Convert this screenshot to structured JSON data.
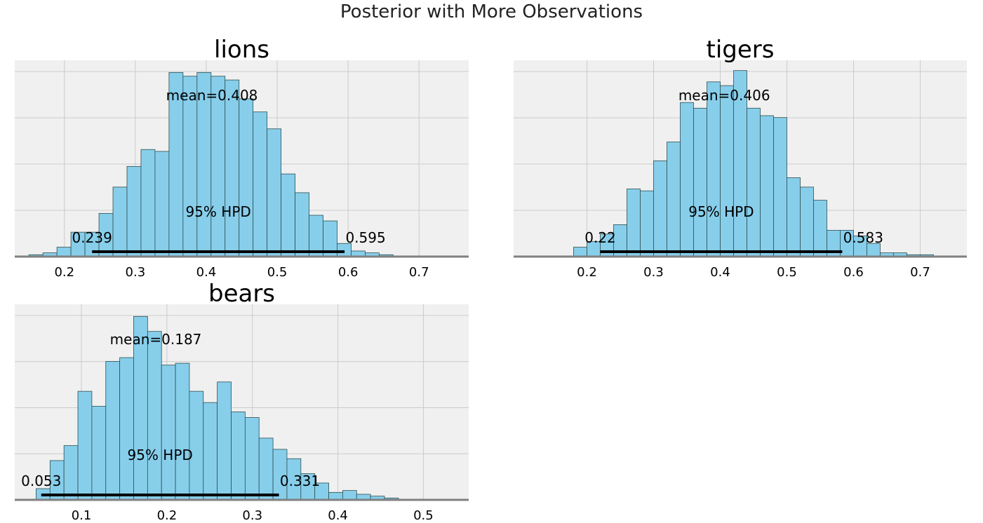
{
  "figure": {
    "title": "Posterior with More Observations"
  },
  "colors": {
    "bar_fill": "#87ceeb",
    "bar_edge": "#2f4f4f",
    "panel_bg": "#f0f0f0",
    "grid": "#cbcbcb",
    "hpd_line": "#000000",
    "axis_line": "#808080",
    "text": "#000000"
  },
  "chart_data": [
    {
      "type": "bar",
      "title": "lions",
      "xlim": [
        0.13,
        0.77
      ],
      "ylim": [
        0,
        1
      ],
      "xticks": [
        0.2,
        0.3,
        0.4,
        0.5,
        0.6,
        0.7
      ],
      "xtick_labels": [
        "0.2",
        "0.3",
        "0.4",
        "0.5",
        "0.6",
        "0.7"
      ],
      "bin_start": 0.15,
      "bin_width": 0.01975,
      "values": [
        0.01,
        0.02,
        0.05,
        0.13,
        0.13,
        0.23,
        0.37,
        0.48,
        0.57,
        0.56,
        0.98,
        0.96,
        0.98,
        0.96,
        0.94,
        0.84,
        0.77,
        0.68,
        0.44,
        0.34,
        0.22,
        0.19,
        0.07,
        0.03,
        0.02,
        0.01
      ],
      "mean_value": 0.408,
      "mean_label": "mean=0.408",
      "hpd": [
        0.239,
        0.595
      ],
      "hpd_low_label": "0.239",
      "hpd_high_label": "0.595",
      "hpd_label": "95% HPD",
      "grid": true
    },
    {
      "type": "bar",
      "title": "tigers",
      "xlim": [
        0.09,
        0.77
      ],
      "ylim": [
        0,
        1
      ],
      "xticks": [
        0.2,
        0.3,
        0.4,
        0.5,
        0.6,
        0.7
      ],
      "xtick_labels": [
        "0.2",
        "0.3",
        "0.4",
        "0.5",
        "0.6",
        "0.7"
      ],
      "bin_start": 0.18,
      "bin_width": 0.02,
      "values": [
        0.05,
        0.08,
        0.12,
        0.17,
        0.36,
        0.35,
        0.51,
        0.61,
        0.82,
        0.79,
        0.93,
        0.91,
        0.99,
        0.79,
        0.75,
        0.74,
        0.42,
        0.37,
        0.3,
        0.14,
        0.14,
        0.11,
        0.07,
        0.02,
        0.02,
        0.01,
        0.01
      ],
      "mean_value": 0.406,
      "mean_label": "mean=0.406",
      "hpd": [
        0.22,
        0.583
      ],
      "hpd_low_label": "0.22",
      "hpd_high_label": "0.583",
      "hpd_label": "95% HPD",
      "grid": true
    },
    {
      "type": "bar",
      "title": "bears",
      "xlim": [
        0.022,
        0.553
      ],
      "ylim": [
        0,
        1
      ],
      "xticks": [
        0.1,
        0.2,
        0.3,
        0.4,
        0.5
      ],
      "xtick_labels": [
        "0.1",
        "0.2",
        "0.3",
        "0.4",
        "0.5"
      ],
      "bin_start": 0.047,
      "bin_width": 0.0163,
      "values": [
        0.06,
        0.21,
        0.29,
        0.58,
        0.5,
        0.74,
        0.76,
        0.98,
        0.9,
        0.72,
        0.73,
        0.58,
        0.52,
        0.63,
        0.47,
        0.44,
        0.33,
        0.27,
        0.22,
        0.14,
        0.09,
        0.04,
        0.05,
        0.03,
        0.02,
        0.01
      ],
      "mean_value": 0.187,
      "mean_label": "mean=0.187",
      "hpd": [
        0.053,
        0.331
      ],
      "hpd_low_label": "0.053",
      "hpd_high_label": "0.331",
      "hpd_label": "95% HPD",
      "grid": true
    }
  ]
}
